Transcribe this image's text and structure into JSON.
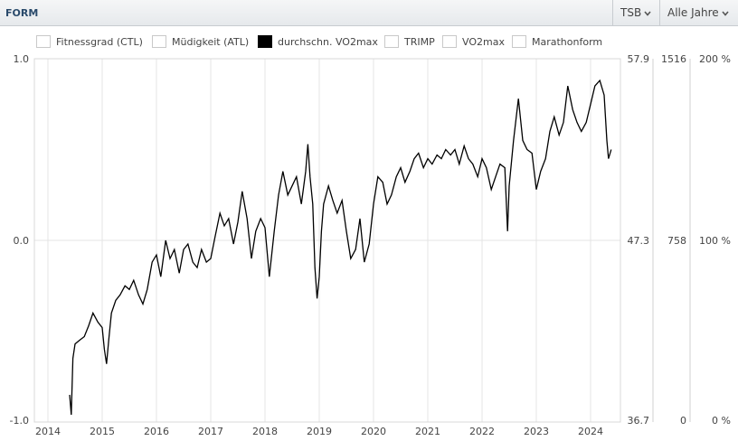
{
  "header": {
    "title": "FORM",
    "tsb_label": "TSB",
    "years_label": "Alle Jahre"
  },
  "legend": [
    {
      "label": "Fitnessgrad (CTL)",
      "active": false
    },
    {
      "label": "Müdigkeit (ATL)",
      "active": false
    },
    {
      "label": "durchschn. VO2max",
      "active": true
    },
    {
      "label": "TRIMP",
      "active": false
    },
    {
      "label": "VO2max",
      "active": false
    },
    {
      "label": "Marathonform",
      "active": false
    }
  ],
  "colors": {
    "line": "#000000",
    "grid": "#e4e4e4",
    "active_legend": "#000000"
  },
  "chart_data": {
    "type": "line",
    "title": "",
    "x_ticks": [
      "2014",
      "2015",
      "2016",
      "2017",
      "2018",
      "2019",
      "2020",
      "2021",
      "2022",
      "2023",
      "2024"
    ],
    "xlim": [
      2013.75,
      2024.55
    ],
    "left_axis": {
      "ticks": [
        "1.0",
        "0.0",
        "-1.0"
      ],
      "ylim": [
        -1.0,
        1.0
      ]
    },
    "right_axes": [
      {
        "ticks": [
          "57.9",
          "47.3",
          "36.7"
        ]
      },
      {
        "ticks": [
          "1516",
          "758",
          "0"
        ]
      },
      {
        "ticks": [
          "200 %",
          "100 %",
          "0 %"
        ]
      }
    ],
    "grid": true,
    "series": [
      {
        "values": [
          [
            2014.4,
            -0.85
          ],
          [
            2014.43,
            -0.96
          ],
          [
            2014.46,
            -0.65
          ],
          [
            2014.5,
            -0.57
          ],
          [
            2014.58,
            -0.55
          ],
          [
            2014.67,
            -0.53
          ],
          [
            2014.75,
            -0.47
          ],
          [
            2014.83,
            -0.4
          ],
          [
            2014.92,
            -0.45
          ],
          [
            2015.0,
            -0.48
          ],
          [
            2015.04,
            -0.6
          ],
          [
            2015.08,
            -0.68
          ],
          [
            2015.12,
            -0.55
          ],
          [
            2015.17,
            -0.4
          ],
          [
            2015.25,
            -0.33
          ],
          [
            2015.33,
            -0.3
          ],
          [
            2015.42,
            -0.25
          ],
          [
            2015.5,
            -0.27
          ],
          [
            2015.58,
            -0.22
          ],
          [
            2015.67,
            -0.3
          ],
          [
            2015.75,
            -0.35
          ],
          [
            2015.83,
            -0.27
          ],
          [
            2015.92,
            -0.12
          ],
          [
            2016.0,
            -0.08
          ],
          [
            2016.08,
            -0.2
          ],
          [
            2016.17,
            0.0
          ],
          [
            2016.25,
            -0.1
          ],
          [
            2016.33,
            -0.05
          ],
          [
            2016.42,
            -0.18
          ],
          [
            2016.5,
            -0.05
          ],
          [
            2016.58,
            -0.02
          ],
          [
            2016.67,
            -0.12
          ],
          [
            2016.75,
            -0.15
          ],
          [
            2016.83,
            -0.05
          ],
          [
            2016.92,
            -0.12
          ],
          [
            2017.0,
            -0.1
          ],
          [
            2017.08,
            0.02
          ],
          [
            2017.17,
            0.15
          ],
          [
            2017.25,
            0.08
          ],
          [
            2017.33,
            0.12
          ],
          [
            2017.42,
            -0.02
          ],
          [
            2017.5,
            0.1
          ],
          [
            2017.58,
            0.27
          ],
          [
            2017.67,
            0.12
          ],
          [
            2017.75,
            -0.1
          ],
          [
            2017.83,
            0.05
          ],
          [
            2017.92,
            0.12
          ],
          [
            2018.0,
            0.07
          ],
          [
            2018.08,
            -0.2
          ],
          [
            2018.17,
            0.05
          ],
          [
            2018.25,
            0.25
          ],
          [
            2018.33,
            0.38
          ],
          [
            2018.42,
            0.25
          ],
          [
            2018.5,
            0.3
          ],
          [
            2018.58,
            0.35
          ],
          [
            2018.67,
            0.2
          ],
          [
            2018.75,
            0.38
          ],
          [
            2018.79,
            0.53
          ],
          [
            2018.83,
            0.35
          ],
          [
            2018.88,
            0.2
          ],
          [
            2018.92,
            -0.15
          ],
          [
            2018.96,
            -0.32
          ],
          [
            2019.0,
            -0.2
          ],
          [
            2019.04,
            0.05
          ],
          [
            2019.08,
            0.2
          ],
          [
            2019.17,
            0.3
          ],
          [
            2019.25,
            0.22
          ],
          [
            2019.33,
            0.15
          ],
          [
            2019.42,
            0.22
          ],
          [
            2019.5,
            0.05
          ],
          [
            2019.58,
            -0.1
          ],
          [
            2019.67,
            -0.05
          ],
          [
            2019.75,
            0.12
          ],
          [
            2019.83,
            -0.12
          ],
          [
            2019.92,
            -0.02
          ],
          [
            2020.0,
            0.2
          ],
          [
            2020.08,
            0.35
          ],
          [
            2020.17,
            0.32
          ],
          [
            2020.25,
            0.2
          ],
          [
            2020.33,
            0.25
          ],
          [
            2020.42,
            0.35
          ],
          [
            2020.5,
            0.4
          ],
          [
            2020.58,
            0.32
          ],
          [
            2020.67,
            0.38
          ],
          [
            2020.75,
            0.45
          ],
          [
            2020.83,
            0.48
          ],
          [
            2020.92,
            0.4
          ],
          [
            2021.0,
            0.45
          ],
          [
            2021.08,
            0.42
          ],
          [
            2021.17,
            0.47
          ],
          [
            2021.25,
            0.45
          ],
          [
            2021.33,
            0.5
          ],
          [
            2021.42,
            0.47
          ],
          [
            2021.5,
            0.5
          ],
          [
            2021.58,
            0.42
          ],
          [
            2021.67,
            0.52
          ],
          [
            2021.75,
            0.45
          ],
          [
            2021.83,
            0.42
          ],
          [
            2021.92,
            0.35
          ],
          [
            2022.0,
            0.45
          ],
          [
            2022.08,
            0.4
          ],
          [
            2022.17,
            0.28
          ],
          [
            2022.25,
            0.35
          ],
          [
            2022.33,
            0.42
          ],
          [
            2022.42,
            0.4
          ],
          [
            2022.47,
            0.05
          ],
          [
            2022.5,
            0.3
          ],
          [
            2022.58,
            0.55
          ],
          [
            2022.67,
            0.78
          ],
          [
            2022.75,
            0.55
          ],
          [
            2022.83,
            0.5
          ],
          [
            2022.92,
            0.48
          ],
          [
            2023.0,
            0.28
          ],
          [
            2023.08,
            0.38
          ],
          [
            2023.17,
            0.45
          ],
          [
            2023.25,
            0.6
          ],
          [
            2023.33,
            0.68
          ],
          [
            2023.42,
            0.58
          ],
          [
            2023.5,
            0.65
          ],
          [
            2023.58,
            0.85
          ],
          [
            2023.67,
            0.72
          ],
          [
            2023.75,
            0.65
          ],
          [
            2023.83,
            0.6
          ],
          [
            2023.92,
            0.65
          ],
          [
            2024.0,
            0.75
          ],
          [
            2024.08,
            0.85
          ],
          [
            2024.17,
            0.88
          ],
          [
            2024.25,
            0.8
          ],
          [
            2024.3,
            0.55
          ],
          [
            2024.33,
            0.45
          ],
          [
            2024.38,
            0.5
          ]
        ]
      }
    ]
  }
}
